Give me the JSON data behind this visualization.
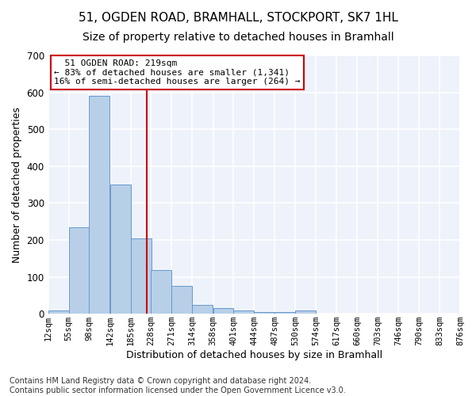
{
  "title1": "51, OGDEN ROAD, BRAMHALL, STOCKPORT, SK7 1HL",
  "title2": "Size of property relative to detached houses in Bramhall",
  "xlabel": "Distribution of detached houses by size in Bramhall",
  "ylabel": "Number of detached properties",
  "bin_edges": [
    12,
    55,
    98,
    142,
    185,
    228,
    271,
    314,
    358,
    401,
    444,
    487,
    530,
    574,
    617,
    660,
    703,
    746,
    790,
    833,
    876
  ],
  "bar_heights": [
    8,
    235,
    590,
    350,
    205,
    118,
    75,
    25,
    15,
    10,
    5,
    5,
    8,
    0,
    0,
    0,
    0,
    0,
    0,
    0
  ],
  "bar_color": "#b8cfe8",
  "bar_edgecolor": "#6699cc",
  "property_sqm": 219,
  "vline_color": "#cc0000",
  "annotation_line1": "  51 OGDEN ROAD: 219sqm",
  "annotation_line2": "← 83% of detached houses are smaller (1,341)",
  "annotation_line3": "16% of semi-detached houses are larger (264) →",
  "annotation_box_edgecolor": "#cc0000",
  "annotation_box_facecolor": "#ffffff",
  "ylim": [
    0,
    700
  ],
  "yticks": [
    0,
    100,
    200,
    300,
    400,
    500,
    600,
    700
  ],
  "footer": "Contains HM Land Registry data © Crown copyright and database right 2024.\nContains public sector information licensed under the Open Government Licence v3.0.",
  "bg_color": "#eef2fa",
  "grid_color": "#ffffff",
  "fig_bg_color": "#ffffff",
  "title1_fontsize": 11,
  "title2_fontsize": 10,
  "axis_label_fontsize": 9,
  "tick_fontsize": 7.5,
  "footer_fontsize": 7,
  "annot_fontsize": 8
}
